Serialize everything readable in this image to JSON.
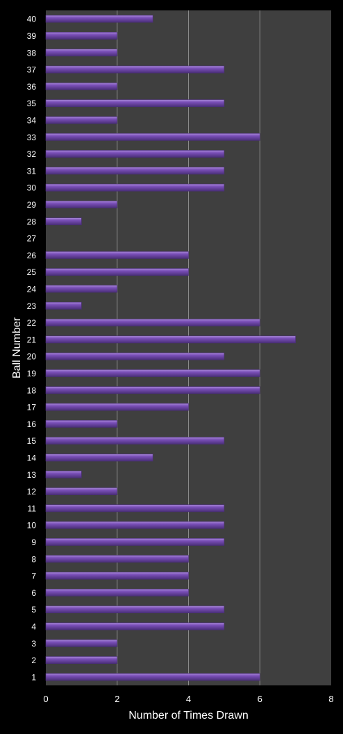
{
  "chart_data": {
    "type": "bar",
    "orientation": "horizontal",
    "title": "",
    "xlabel": "Number of Times Drawn",
    "ylabel": "Ball Number",
    "xlim": [
      0,
      8
    ],
    "xticks": [
      "0",
      "2",
      "4",
      "6",
      "8"
    ],
    "grid": true,
    "legend": "none",
    "categories": [
      "1",
      "2",
      "3",
      "4",
      "5",
      "6",
      "7",
      "8",
      "9",
      "10",
      "11",
      "12",
      "13",
      "14",
      "15",
      "16",
      "17",
      "18",
      "19",
      "20",
      "21",
      "22",
      "23",
      "24",
      "25",
      "26",
      "27",
      "28",
      "29",
      "30",
      "31",
      "32",
      "33",
      "34",
      "35",
      "36",
      "37",
      "38",
      "39",
      "40"
    ],
    "values": [
      6,
      2,
      2,
      5,
      5,
      4,
      4,
      4,
      5,
      5,
      5,
      2,
      1,
      3,
      5,
      2,
      4,
      6,
      6,
      5,
      7,
      6,
      1,
      2,
      4,
      4,
      0,
      1,
      2,
      5,
      5,
      5,
      6,
      2,
      5,
      2,
      5,
      2,
      2,
      3
    ]
  },
  "colors": {
    "background": "#000000",
    "plot_area": "#3f3f3f",
    "gridline": "#8a8a8a",
    "bar_fill": "#7a4fb8",
    "bar_highlight": "#a989d8",
    "bar_shadow": "#4a2f78",
    "text": "#ffffff"
  }
}
